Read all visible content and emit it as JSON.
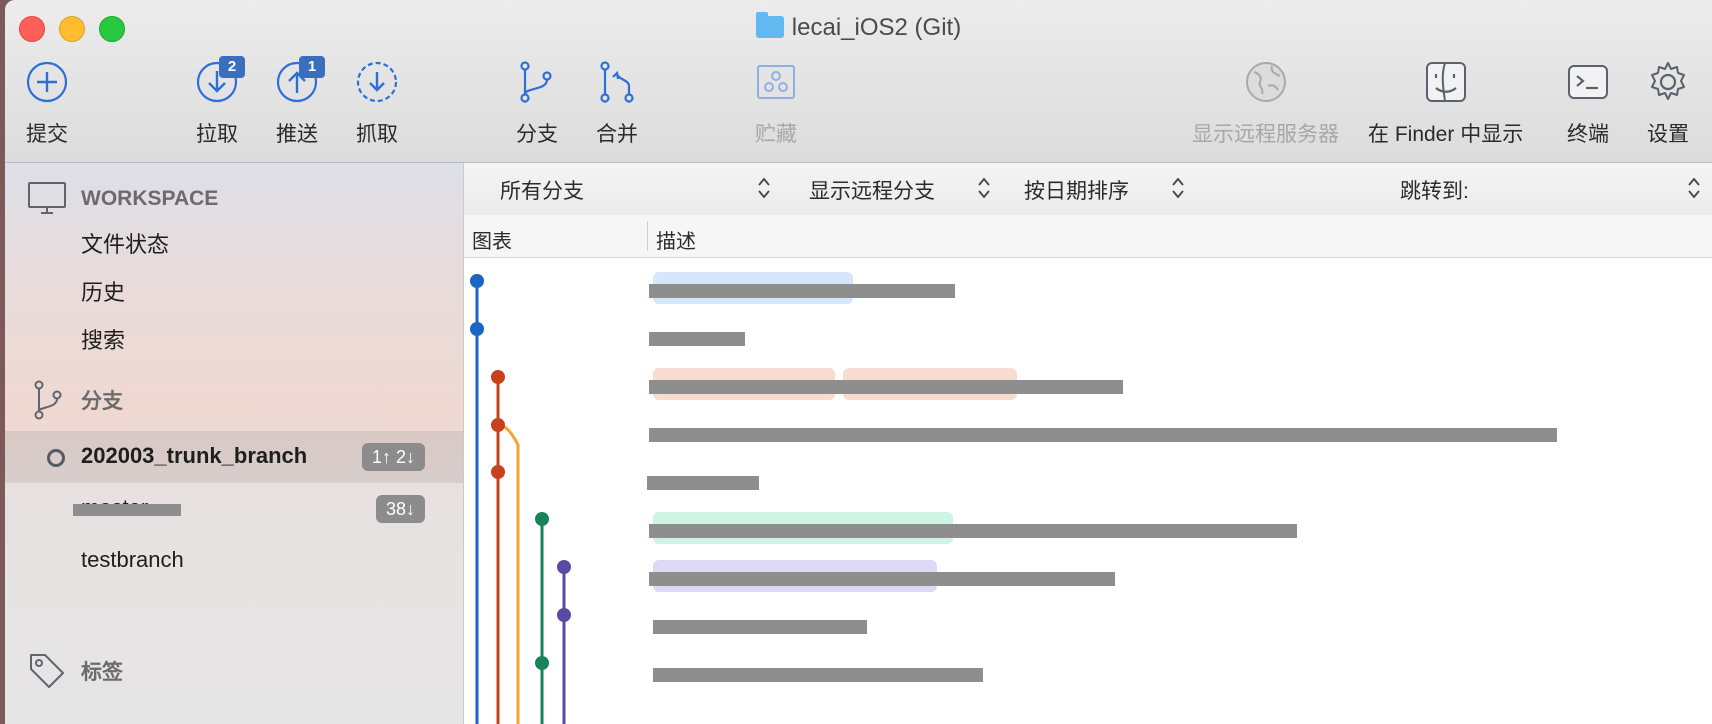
{
  "window": {
    "title": "lecai_iOS2 (Git)"
  },
  "toolbar": {
    "commit": {
      "label": "提交",
      "icon": "plus-circle-icon"
    },
    "pull": {
      "label": "拉取",
      "icon": "pull-arrow-icon",
      "badge": "2"
    },
    "push": {
      "label": "推送",
      "icon": "push-arrow-icon",
      "badge": "1"
    },
    "fetch": {
      "label": "抓取",
      "icon": "fetch-arrow-icon"
    },
    "branch": {
      "label": "分支",
      "icon": "branch-icon"
    },
    "merge": {
      "label": "合并",
      "icon": "merge-icon"
    },
    "stash": {
      "label": "贮藏",
      "icon": "stash-icon"
    },
    "remote": {
      "label": "显示远程服务器",
      "icon": "globe-icon"
    },
    "finder": {
      "label": "在 Finder 中显示",
      "icon": "finder-icon"
    },
    "terminal": {
      "label": "终端",
      "icon": "terminal-icon"
    },
    "settings": {
      "label": "设置",
      "icon": "gear-icon"
    }
  },
  "sidebar": {
    "workspace": {
      "label": "WORKSPACE",
      "items": [
        {
          "label": "文件状态"
        },
        {
          "label": "历史"
        },
        {
          "label": "搜索"
        }
      ]
    },
    "branches": {
      "label": "分支",
      "items": [
        {
          "name": "202003_trunk_branch",
          "count": "1↑ 2↓",
          "current": true
        },
        {
          "name": "master",
          "count": "38↓",
          "current": false
        },
        {
          "name": "testbranch",
          "count": "",
          "current": false
        }
      ]
    },
    "tags": {
      "label": "标签"
    }
  },
  "filters": {
    "branches": "所有分支",
    "remote": "显示远程分支",
    "sort": "按日期排序",
    "jump": "跳转到:"
  },
  "columns": {
    "graph": "图表",
    "description": "描述"
  },
  "colors": {
    "lane_blue": "#1a66c2",
    "lane_red": "#c7411c",
    "lane_orange": "#f4a233",
    "lane_green": "#19835a",
    "lane_purple": "#5b4aa5",
    "tag_blue": "#d7e7fb",
    "tag_peach": "#f9dcd0",
    "tag_mint": "#cff4e3",
    "tag_lavender": "#ddd8f6",
    "badge": "#3a6fc0"
  }
}
